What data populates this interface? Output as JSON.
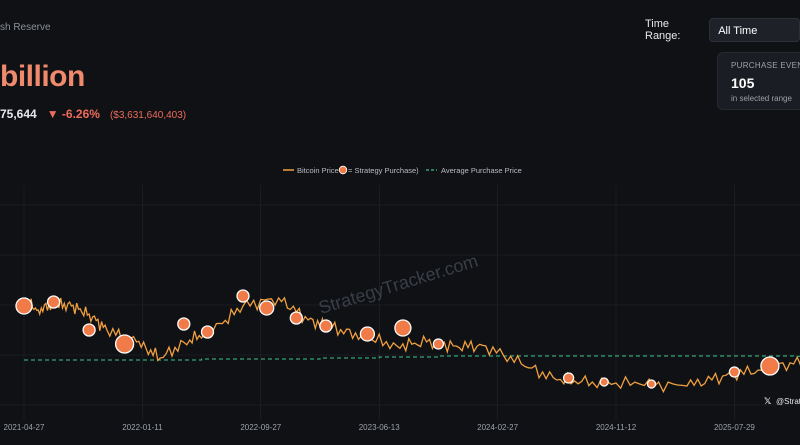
{
  "header": {
    "reserve_label": "sh Reserve",
    "total_value": "billion",
    "btc_amount": "75,644",
    "change_pct": "▼ -6.26%",
    "change_usd": "($3,631,640,403)"
  },
  "controls": {
    "time_range_label": "Time Range:",
    "time_range_value": "All Time"
  },
  "events_card": {
    "title": "PURCHASE EVENTS",
    "count": "105",
    "subtitle": "in selected range"
  },
  "watermark": "StrategyTracker.com",
  "credit": "@Strat",
  "colors": {
    "price": "#f0a040",
    "purchase_fill": "#f07a48",
    "purchase_stroke": "#ffffff",
    "avg": "#35a374",
    "grid": "#23262d"
  },
  "chart_data": {
    "type": "line",
    "legend_position": "top-center",
    "grid": true,
    "x_ticks": [
      "2021-04-27",
      "2022-01-11",
      "2022-09-27",
      "2023-06-13",
      "2024-02-27",
      "2024-11-12",
      "2025-07-29"
    ],
    "series": [
      {
        "name": "Bitcoin Price",
        "legend_suffix": " = Strategy Purchase)",
        "points": [
          [
            0,
            60
          ],
          [
            0.12,
            55
          ],
          [
            0.25,
            58
          ],
          [
            0.4,
            57
          ],
          [
            0.55,
            53
          ],
          [
            0.7,
            45
          ],
          [
            0.95,
            39
          ],
          [
            1.15,
            31
          ],
          [
            1.4,
            40
          ],
          [
            1.6,
            45
          ],
          [
            1.85,
            57
          ],
          [
            2.15,
            61
          ],
          [
            2.4,
            50
          ],
          [
            2.6,
            46
          ],
          [
            2.85,
            42
          ],
          [
            3.15,
            37
          ],
          [
            3.4,
            39
          ],
          [
            3.65,
            37
          ],
          [
            3.9,
            37
          ],
          [
            4.2,
            28
          ],
          [
            4.5,
            20
          ],
          [
            4.8,
            19
          ],
          [
            5.2,
            18
          ],
          [
            5.6,
            17
          ],
          [
            5.9,
            22
          ],
          [
            6.2,
            25
          ],
          [
            6.5,
            28
          ],
          [
            6.8,
            29
          ],
          [
            7.1,
            27
          ],
          [
            7.4,
            27
          ],
          [
            7.7,
            25
          ],
          [
            7.9,
            26
          ],
          [
            8.2,
            34
          ],
          [
            8.4,
            45
          ],
          [
            8.6,
            55
          ],
          [
            8.9,
            66
          ],
          [
            9.2,
            62
          ],
          [
            9.5,
            59
          ],
          [
            9.8,
            58
          ],
          [
            10.1,
            61
          ],
          [
            10.3,
            70
          ],
          [
            10.6,
            95
          ],
          [
            10.9,
            100
          ],
          [
            11.3,
            92
          ],
          [
            11.7,
            101
          ],
          [
            12.0,
            98
          ],
          [
            12.4,
            105
          ],
          [
            12.8,
            111
          ],
          [
            13.05,
            107
          ],
          [
            13.3,
            96
          ],
          [
            13.45,
            90
          ],
          [
            13.6,
            85
          ],
          [
            13.8,
            86
          ],
          [
            14.0,
            85
          ]
        ]
      },
      {
        "name": "Average Purchase Price",
        "points": [
          [
            0,
            30
          ],
          [
            1.0,
            30
          ],
          [
            1.5,
            30.5
          ],
          [
            2.5,
            31
          ],
          [
            3.0,
            31.5
          ],
          [
            3.5,
            32
          ],
          [
            4.5,
            32
          ],
          [
            5.5,
            32
          ],
          [
            6.5,
            31.8
          ],
          [
            7.0,
            31.5
          ],
          [
            7.5,
            31
          ],
          [
            8.0,
            31.2
          ],
          [
            8.5,
            33
          ],
          [
            9.0,
            35
          ],
          [
            9.5,
            36
          ],
          [
            10.0,
            37
          ],
          [
            10.4,
            43
          ],
          [
            10.6,
            52
          ],
          [
            10.8,
            57
          ],
          [
            11.2,
            61
          ],
          [
            11.5,
            64
          ],
          [
            12.0,
            67
          ],
          [
            12.5,
            69
          ],
          [
            13.0,
            70
          ],
          [
            13.5,
            71
          ],
          [
            14.0,
            71.5
          ]
        ]
      }
    ],
    "purchases": [
      [
        0.0,
        57,
        8
      ],
      [
        0.25,
        59,
        6
      ],
      [
        0.55,
        45,
        6
      ],
      [
        0.85,
        38,
        9
      ],
      [
        1.35,
        48,
        6
      ],
      [
        1.55,
        44,
        6
      ],
      [
        1.85,
        62,
        6
      ],
      [
        2.05,
        56,
        7
      ],
      [
        2.3,
        51,
        6
      ],
      [
        2.55,
        47,
        6
      ],
      [
        2.9,
        43,
        7
      ],
      [
        3.2,
        46,
        8
      ],
      [
        3.5,
        38,
        5
      ],
      [
        4.6,
        21,
        5
      ],
      [
        4.9,
        19,
        4
      ],
      [
        5.3,
        18,
        4
      ],
      [
        6.0,
        24,
        5
      ],
      [
        6.3,
        27,
        9
      ],
      [
        6.6,
        28,
        5
      ],
      [
        6.9,
        27,
        5
      ],
      [
        7.3,
        27,
        6
      ],
      [
        7.65,
        26,
        5
      ],
      [
        7.9,
        26,
        7
      ],
      [
        8.2,
        36,
        8
      ],
      [
        8.45,
        43,
        8
      ],
      [
        8.6,
        50,
        6
      ],
      [
        8.8,
        59,
        6
      ],
      [
        9.05,
        62,
        6
      ],
      [
        9.3,
        57,
        8
      ],
      [
        9.7,
        58,
        6
      ],
      [
        10.1,
        56,
        7
      ],
      [
        10.45,
        75,
        9
      ],
      [
        10.55,
        84,
        10
      ],
      [
        10.62,
        90,
        13
      ],
      [
        10.75,
        92,
        12
      ],
      [
        10.85,
        95,
        11
      ],
      [
        10.93,
        99,
        10
      ],
      [
        11.1,
        96,
        8
      ],
      [
        11.4,
        89,
        9
      ],
      [
        11.7,
        86,
        8
      ],
      [
        11.9,
        89,
        7
      ],
      [
        12.1,
        98,
        7
      ],
      [
        12.3,
        101,
        9
      ],
      [
        12.5,
        104,
        8
      ],
      [
        12.75,
        114,
        12
      ],
      [
        12.95,
        110,
        9
      ],
      [
        13.1,
        107,
        8
      ],
      [
        13.35,
        102,
        7
      ],
      [
        13.55,
        89,
        9
      ],
      [
        13.75,
        86,
        8
      ],
      [
        13.9,
        87,
        6
      ]
    ]
  }
}
